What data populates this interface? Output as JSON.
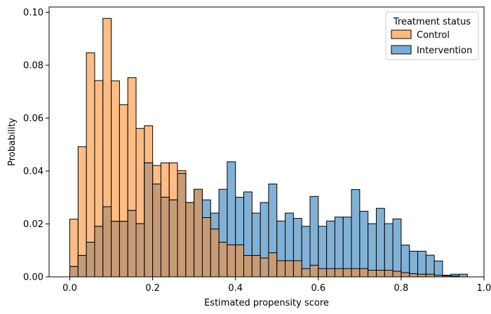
{
  "chart_data": {
    "type": "histogram",
    "xlabel": "Estimated propensity score",
    "ylabel": "Probability",
    "xlim": [
      -0.05,
      1.0
    ],
    "ylim": [
      0,
      0.102
    ],
    "bin_width": 0.02,
    "xticks": [
      0.0,
      0.2,
      0.4,
      0.6,
      0.8,
      1.0
    ],
    "xtick_labels": [
      "0.0",
      "0.2",
      "0.4",
      "0.6",
      "0.8",
      "1.0"
    ],
    "yticks": [
      0.0,
      0.02,
      0.04,
      0.06,
      0.08,
      0.1
    ],
    "ytick_labels": [
      "0.00",
      "0.02",
      "0.04",
      "0.06",
      "0.08",
      "0.10"
    ],
    "grid": false,
    "legend": {
      "title": "Treatment status",
      "placement": "top-right"
    },
    "series": [
      {
        "name": "Control",
        "color": "#ffb97e",
        "bin_starts": [
          0.0,
          0.02,
          0.04,
          0.06,
          0.08,
          0.1,
          0.12,
          0.14,
          0.16,
          0.18,
          0.2,
          0.22,
          0.24,
          0.26,
          0.28,
          0.3,
          0.32,
          0.34,
          0.36,
          0.38,
          0.4,
          0.42,
          0.44,
          0.46,
          0.48,
          0.5,
          0.52,
          0.54,
          0.56,
          0.58,
          0.6,
          0.62,
          0.64,
          0.66,
          0.68,
          0.7,
          0.72,
          0.74,
          0.76,
          0.78,
          0.8,
          0.82,
          0.84,
          0.86,
          0.88,
          0.9,
          0.92
        ],
        "values": [
          0.0218,
          0.0492,
          0.0847,
          0.0742,
          0.0977,
          0.0741,
          0.0651,
          0.0753,
          0.0561,
          0.0571,
          0.0421,
          0.0431,
          0.0431,
          0.0401,
          0.0281,
          0.0331,
          0.0224,
          0.0181,
          0.0131,
          0.0121,
          0.0121,
          0.0081,
          0.0081,
          0.0071,
          0.0091,
          0.0061,
          0.0061,
          0.0061,
          0.0031,
          0.0044,
          0.0031,
          0.0031,
          0.0031,
          0.0031,
          0.0031,
          0.0031,
          0.0025,
          0.0025,
          0.0025,
          0.0021,
          0.0016,
          0.0012,
          0.001,
          0.001,
          0.0006,
          0.0004,
          0.0003
        ]
      },
      {
        "name": "Intervention",
        "color": "#7badd4",
        "bin_starts": [
          0.0,
          0.02,
          0.04,
          0.06,
          0.08,
          0.1,
          0.12,
          0.14,
          0.16,
          0.18,
          0.2,
          0.22,
          0.24,
          0.26,
          0.28,
          0.3,
          0.32,
          0.34,
          0.36,
          0.38,
          0.4,
          0.42,
          0.44,
          0.46,
          0.48,
          0.5,
          0.52,
          0.54,
          0.56,
          0.58,
          0.6,
          0.62,
          0.64,
          0.66,
          0.68,
          0.7,
          0.72,
          0.74,
          0.76,
          0.78,
          0.8,
          0.82,
          0.84,
          0.86,
          0.88,
          0.9,
          0.92,
          0.94
        ],
        "values": [
          0.0039,
          0.0081,
          0.0131,
          0.0191,
          0.0265,
          0.021,
          0.021,
          0.0251,
          0.0201,
          0.0431,
          0.0351,
          0.0301,
          0.0291,
          0.0391,
          0.0281,
          0.0331,
          0.0291,
          0.0241,
          0.0331,
          0.0435,
          0.0301,
          0.0321,
          0.0241,
          0.0281,
          0.0351,
          0.0211,
          0.0241,
          0.0221,
          0.0191,
          0.0304,
          0.0191,
          0.0211,
          0.0226,
          0.0226,
          0.033,
          0.0248,
          0.0201,
          0.0259,
          0.0201,
          0.0219,
          0.012,
          0.0097,
          0.0097,
          0.0082,
          0.006,
          0.0006,
          0.001,
          0.001
        ]
      }
    ]
  }
}
